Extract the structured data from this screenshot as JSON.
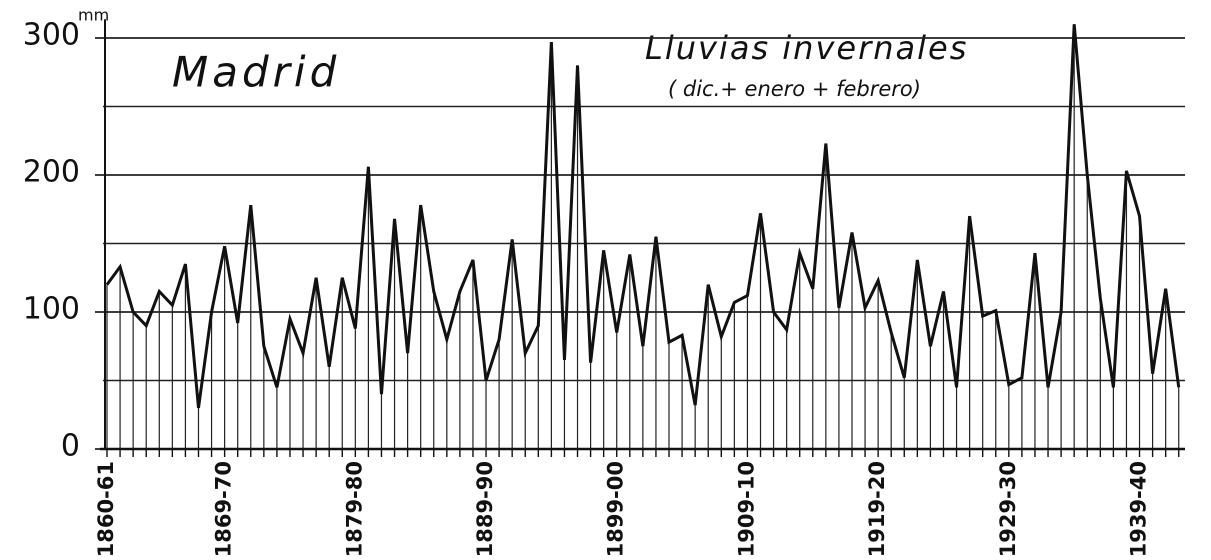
{
  "chart_data": {
    "type": "line",
    "title": "Madrid",
    "annotation": "Lluvias invernales",
    "subtitle": "( dic.+ enero + febrero)",
    "y_unit": "mm",
    "categories": [
      "1860-61",
      null,
      null,
      null,
      null,
      null,
      null,
      null,
      null,
      "1869-70",
      null,
      null,
      null,
      null,
      null,
      null,
      null,
      null,
      null,
      "1879-80",
      null,
      null,
      null,
      null,
      null,
      null,
      null,
      null,
      null,
      "1889-90",
      null,
      null,
      null,
      null,
      null,
      null,
      null,
      null,
      null,
      "1899-00",
      null,
      null,
      null,
      null,
      null,
      null,
      null,
      null,
      null,
      "1909-10",
      null,
      null,
      null,
      null,
      null,
      null,
      null,
      null,
      null,
      "1919-20",
      null,
      null,
      null,
      null,
      null,
      null,
      null,
      null,
      null,
      "1929-30",
      null,
      null,
      null,
      null,
      null,
      null,
      null,
      null,
      null,
      "1939-40",
      null,
      null,
      null
    ],
    "values": [
      120,
      133,
      100,
      90,
      115,
      105,
      135,
      30,
      100,
      148,
      92,
      178,
      75,
      45,
      95,
      70,
      125,
      60,
      125,
      88,
      206,
      40,
      168,
      70,
      178,
      115,
      80,
      115,
      138,
      50,
      80,
      153,
      70,
      90,
      297,
      65,
      280,
      63,
      145,
      85,
      142,
      75,
      155,
      78,
      83,
      32,
      120,
      82,
      107,
      112,
      172,
      100,
      87,
      143,
      117,
      223,
      103,
      158,
      103,
      123,
      85,
      52,
      138,
      75,
      115,
      45,
      170,
      97,
      101,
      47,
      52,
      143,
      45,
      100,
      310,
      200,
      110,
      45,
      203,
      170,
      55,
      117,
      45
    ],
    "color": "#111111",
    "ylim": [
      0,
      310
    ],
    "yticks": [
      0,
      100,
      200,
      300
    ],
    "minor_yticks": [
      50,
      150,
      250
    ],
    "grid": true
  }
}
